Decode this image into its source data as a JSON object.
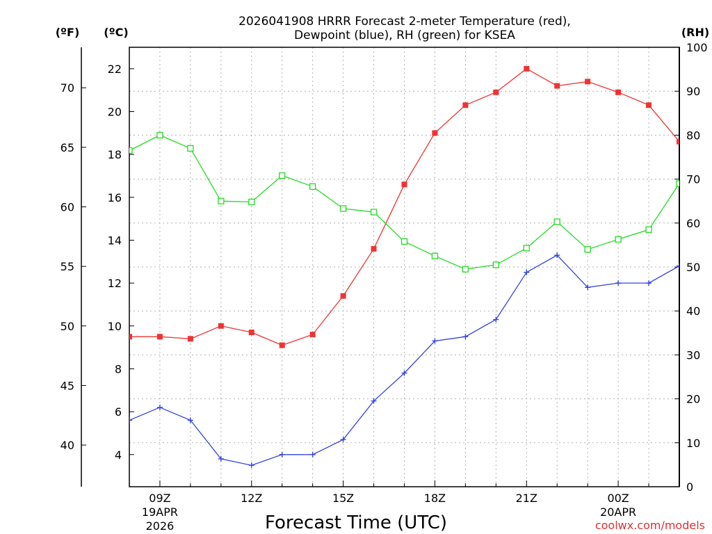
{
  "chart_data": {
    "type": "line",
    "title_line1": "2026041908 HRRR Forecast 2-meter Temperature (red),",
    "title_line2": "Dewpoint (blue), RH (green) for KSEA",
    "xlabel": "Forecast Time (UTC)",
    "credit": "coolwx.com/models",
    "left_axis_f": {
      "unit_label": "(ºF)",
      "ticks": [
        "40",
        "45",
        "50",
        "55",
        "60",
        "65",
        "70"
      ],
      "tick_values": [
        40,
        45,
        50,
        55,
        60,
        65,
        70
      ]
    },
    "left_axis_c": {
      "unit_label": "(ºC)",
      "range": [
        2.5,
        23.0
      ],
      "ticks": [
        "4",
        "6",
        "8",
        "10",
        "12",
        "14",
        "16",
        "18",
        "20",
        "22"
      ],
      "tick_values": [
        4,
        6,
        8,
        10,
        12,
        14,
        16,
        18,
        20,
        22
      ]
    },
    "right_axis_rh": {
      "unit_label": "(RH)",
      "range": [
        0,
        100
      ],
      "ticks": [
        "0",
        "10",
        "20",
        "30",
        "40",
        "50",
        "60",
        "70",
        "80",
        "90",
        "100"
      ],
      "tick_values": [
        0,
        10,
        20,
        30,
        40,
        50,
        60,
        70,
        80,
        90,
        100
      ]
    },
    "x_range_hours": [
      8,
      26
    ],
    "x_ticks": [
      {
        "hour": 9,
        "label": "09Z",
        "date1": "19APR",
        "date2": "2026"
      },
      {
        "hour": 12,
        "label": "12Z",
        "date1": "",
        "date2": ""
      },
      {
        "hour": 15,
        "label": "15Z",
        "date1": "",
        "date2": ""
      },
      {
        "hour": 18,
        "label": "18Z",
        "date1": "",
        "date2": ""
      },
      {
        "hour": 21,
        "label": "21Z",
        "date1": "",
        "date2": ""
      },
      {
        "hour": 24,
        "label": "00Z",
        "date1": "20APR",
        "date2": ""
      }
    ],
    "x_hours": [
      8,
      9,
      10,
      11,
      12,
      13,
      14,
      15,
      16,
      17,
      18,
      19,
      20,
      21,
      22,
      23,
      24,
      25,
      26
    ],
    "series": [
      {
        "name": "Temperature",
        "axis": "celsius",
        "color": "#ee3333",
        "marker": "filled-square",
        "values": [
          9.5,
          9.5,
          9.4,
          10.0,
          9.7,
          9.1,
          9.6,
          11.4,
          13.6,
          16.6,
          19.0,
          20.3,
          20.9,
          22.0,
          21.2,
          21.4,
          20.9,
          20.3,
          18.6
        ]
      },
      {
        "name": "Dewpoint",
        "axis": "celsius",
        "color": "#3344dd",
        "marker": "plus",
        "values": [
          5.6,
          6.2,
          5.6,
          3.8,
          3.5,
          4.0,
          4.0,
          4.7,
          6.5,
          7.8,
          9.3,
          9.5,
          10.3,
          12.5,
          13.3,
          11.8,
          12.0,
          12.0,
          12.8
        ]
      },
      {
        "name": "RH",
        "axis": "rh",
        "color": "#22dd22",
        "marker": "open-square",
        "values": [
          76.5,
          80.0,
          77.0,
          65.0,
          64.8,
          70.8,
          68.3,
          63.3,
          62.5,
          55.8,
          52.5,
          49.5,
          50.5,
          54.3,
          60.3,
          54.0,
          56.3,
          58.5,
          69.0
        ]
      }
    ]
  }
}
